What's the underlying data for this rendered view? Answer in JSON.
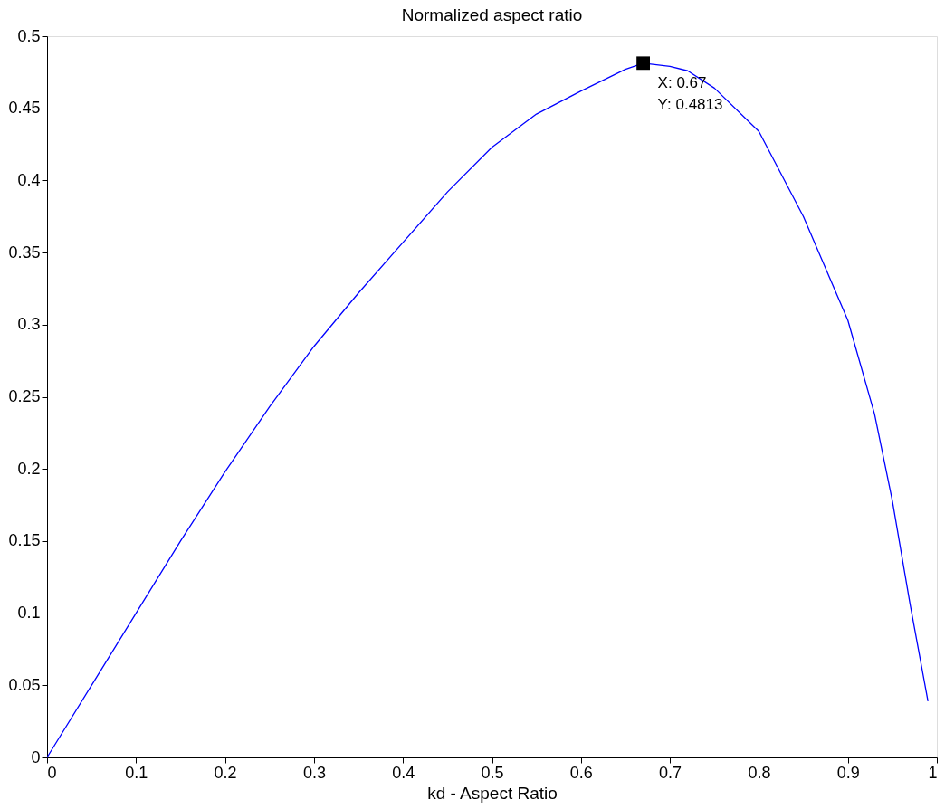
{
  "chart_data": {
    "type": "line",
    "title": "Normalized aspect ratio",
    "xlabel": "kd - Aspect Ratio",
    "x": [
      0,
      0.05,
      0.1,
      0.15,
      0.2,
      0.25,
      0.3,
      0.35,
      0.4,
      0.45,
      0.5,
      0.55,
      0.6,
      0.65,
      0.67,
      0.7,
      0.72,
      0.75,
      0.8,
      0.85,
      0.9,
      0.93,
      0.95,
      0.97,
      0.99
    ],
    "series": [
      {
        "color": "#0000ff",
        "values": [
          0,
          0.05,
          0.1,
          0.15,
          0.198,
          0.243,
          0.285,
          0.322,
          0.357,
          0.392,
          0.423,
          0.446,
          0.462,
          0.477,
          0.4813,
          0.479,
          0.476,
          0.464,
          0.434,
          0.375,
          0.303,
          0.238,
          0.178,
          0.106,
          0.039
        ]
      }
    ],
    "xlim": [
      0,
      1
    ],
    "xticks": [
      0,
      0.1,
      0.2,
      0.3,
      0.4,
      0.5,
      0.6,
      0.7,
      0.8,
      0.9,
      1
    ],
    "ylim": [
      0,
      0.5
    ],
    "yticks": [
      0,
      0.05,
      0.1,
      0.15,
      0.2,
      0.25,
      0.3,
      0.35,
      0.4,
      0.45,
      0.5
    ],
    "grid": false,
    "marker": "none",
    "line_style": "solid",
    "annotations": [
      {
        "text": "X: 0.67\nY: 0.4813",
        "x": 0.67,
        "y": 0.4813
      }
    ]
  }
}
